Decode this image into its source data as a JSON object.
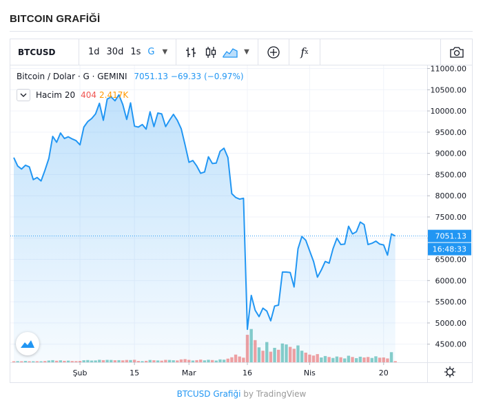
{
  "page": {
    "title": "BITCOIN GRAFİĞİ"
  },
  "toolbar": {
    "symbol": "BTCUSD",
    "intervals": [
      {
        "label": "1d",
        "active": false
      },
      {
        "label": "30d",
        "active": false
      },
      {
        "label": "1s",
        "active": false
      },
      {
        "label": "G",
        "active": true
      }
    ]
  },
  "legend": {
    "name": "Bitcoin / Dolar · G · GEMINI",
    "value": "7051.13 −69.33 (−0.97%)",
    "volume_name": "Hacim 20",
    "volume_value": "404",
    "volume_ma": "2.417K"
  },
  "colors": {
    "line": "#2196f3",
    "up": "#26a69a",
    "down": "#ef5350",
    "label_bg": "#2196f3"
  },
  "chart_data": {
    "type": "area",
    "title": "",
    "xlabel": "",
    "ylabel": "",
    "ylim": [
      4300,
      11000
    ],
    "y_ticks": [
      "11000.00",
      "10500.00",
      "10000.00",
      "9500.00",
      "9000.00",
      "8500.00",
      "8000.00",
      "7500.00",
      "7000.00",
      "6500.00",
      "6000.00",
      "5500.00",
      "5000.00",
      "4500.00"
    ],
    "x_tick_labels": [
      {
        "label": "Şub",
        "day": 17
      },
      {
        "label": "15",
        "day": 31
      },
      {
        "label": "Mar",
        "day": 45
      },
      {
        "label": "16",
        "day": 60
      },
      {
        "label": "Nis",
        "day": 76
      },
      {
        "label": "20",
        "day": 95
      }
    ],
    "current_price": "7051.13",
    "countdown": "16:48:33",
    "series": [
      {
        "values": [
          8900,
          8700,
          8630,
          8720,
          8680,
          8380,
          8430,
          8350,
          8600,
          8880,
          9400,
          9260,
          9480,
          9350,
          9390,
          9340,
          9300,
          9200,
          9620,
          9750,
          9820,
          9930,
          10180,
          9780,
          10280,
          10330,
          10240,
          10380,
          10150,
          9800,
          10190,
          9640,
          9620,
          9680,
          9570,
          9980,
          9630,
          9950,
          9930,
          9630,
          9780,
          9920,
          9780,
          9580,
          9200,
          8790,
          8830,
          8700,
          8530,
          8560,
          8920,
          8760,
          8770,
          9050,
          9120,
          8900,
          8050,
          7960,
          7920,
          7940,
          4850,
          5650,
          5300,
          5150,
          5350,
          5280,
          5050,
          5400,
          5420,
          6200,
          6200,
          6190,
          5850,
          6750,
          7040,
          6950,
          6700,
          6450,
          6080,
          6250,
          6450,
          6410,
          6750,
          7000,
          6850,
          6860,
          7280,
          7100,
          7150,
          7380,
          7320,
          6850,
          6880,
          6930,
          6860,
          6840,
          6600,
          7100,
          7051
        ]
      }
    ],
    "volume": [
      {
        "v": 0.08,
        "up": false
      },
      {
        "v": 0.12,
        "up": true
      },
      {
        "v": 0.1,
        "up": false
      },
      {
        "v": 0.14,
        "up": true
      },
      {
        "v": 0.09,
        "up": false
      },
      {
        "v": 0.07,
        "up": true
      },
      {
        "v": 0.11,
        "up": false
      },
      {
        "v": 0.08,
        "up": true
      },
      {
        "v": 0.13,
        "up": false
      },
      {
        "v": 0.18,
        "up": true
      },
      {
        "v": 0.22,
        "up": true
      },
      {
        "v": 0.16,
        "up": false
      },
      {
        "v": 0.2,
        "up": true
      },
      {
        "v": 0.15,
        "up": false
      },
      {
        "v": 0.17,
        "up": true
      },
      {
        "v": 0.13,
        "up": false
      },
      {
        "v": 0.12,
        "up": false
      },
      {
        "v": 0.14,
        "up": false
      },
      {
        "v": 0.21,
        "up": true
      },
      {
        "v": 0.23,
        "up": true
      },
      {
        "v": 0.18,
        "up": true
      },
      {
        "v": 0.19,
        "up": true
      },
      {
        "v": 0.26,
        "up": true
      },
      {
        "v": 0.22,
        "up": false
      },
      {
        "v": 0.25,
        "up": true
      },
      {
        "v": 0.24,
        "up": true
      },
      {
        "v": 0.21,
        "up": false
      },
      {
        "v": 0.22,
        "up": true
      },
      {
        "v": 0.2,
        "up": false
      },
      {
        "v": 0.24,
        "up": false
      },
      {
        "v": 0.23,
        "up": true
      },
      {
        "v": 0.26,
        "up": false
      },
      {
        "v": 0.14,
        "up": false
      },
      {
        "v": 0.12,
        "up": true
      },
      {
        "v": 0.15,
        "up": false
      },
      {
        "v": 0.24,
        "up": true
      },
      {
        "v": 0.21,
        "up": false
      },
      {
        "v": 0.19,
        "up": true
      },
      {
        "v": 0.17,
        "up": false
      },
      {
        "v": 0.25,
        "up": false
      },
      {
        "v": 0.24,
        "up": true
      },
      {
        "v": 0.21,
        "up": true
      },
      {
        "v": 0.19,
        "up": false
      },
      {
        "v": 0.3,
        "up": false
      },
      {
        "v": 0.33,
        "up": false
      },
      {
        "v": 0.25,
        "up": false
      },
      {
        "v": 0.18,
        "up": true
      },
      {
        "v": 0.22,
        "up": false
      },
      {
        "v": 0.28,
        "up": false
      },
      {
        "v": 0.2,
        "up": true
      },
      {
        "v": 0.26,
        "up": true
      },
      {
        "v": 0.23,
        "up": false
      },
      {
        "v": 0.18,
        "up": true
      },
      {
        "v": 0.3,
        "up": true
      },
      {
        "v": 0.27,
        "up": true
      },
      {
        "v": 0.38,
        "up": false
      },
      {
        "v": 0.52,
        "up": false
      },
      {
        "v": 0.8,
        "up": false
      },
      {
        "v": 0.6,
        "up": false
      },
      {
        "v": 0.48,
        "up": false
      },
      {
        "v": 2.85,
        "up": false
      },
      {
        "v": 3.45,
        "up": true
      },
      {
        "v": 2.3,
        "up": false
      },
      {
        "v": 1.55,
        "up": true
      },
      {
        "v": 1.2,
        "up": false
      },
      {
        "v": 2.1,
        "up": true
      },
      {
        "v": 1.1,
        "up": false
      },
      {
        "v": 1.5,
        "up": true
      },
      {
        "v": 1.3,
        "up": false
      },
      {
        "v": 1.95,
        "up": true
      },
      {
        "v": 1.85,
        "up": true
      },
      {
        "v": 1.6,
        "up": false
      },
      {
        "v": 1.4,
        "up": false
      },
      {
        "v": 1.75,
        "up": true
      },
      {
        "v": 1.2,
        "up": true
      },
      {
        "v": 1.0,
        "up": false
      },
      {
        "v": 0.8,
        "up": false
      },
      {
        "v": 0.7,
        "up": false
      },
      {
        "v": 0.85,
        "up": false
      },
      {
        "v": 0.5,
        "up": true
      },
      {
        "v": 0.65,
        "up": true
      },
      {
        "v": 0.55,
        "up": false
      },
      {
        "v": 0.45,
        "up": true
      },
      {
        "v": 0.6,
        "up": true
      },
      {
        "v": 0.52,
        "up": false
      },
      {
        "v": 0.4,
        "up": true
      },
      {
        "v": 0.68,
        "up": true
      },
      {
        "v": 0.55,
        "up": false
      },
      {
        "v": 0.43,
        "up": true
      },
      {
        "v": 0.58,
        "up": true
      },
      {
        "v": 0.5,
        "up": false
      },
      {
        "v": 0.55,
        "up": false
      },
      {
        "v": 0.45,
        "up": true
      },
      {
        "v": 0.62,
        "up": true
      },
      {
        "v": 0.48,
        "up": false
      },
      {
        "v": 0.5,
        "up": false
      },
      {
        "v": 0.4,
        "up": false
      },
      {
        "v": 1.05,
        "up": true
      },
      {
        "v": 0.12,
        "up": false
      }
    ],
    "grid": true,
    "legend_position": "top-left"
  },
  "footer": {
    "link_text": "BTCUSD Grafiği",
    "by_text": "by TradingView"
  }
}
